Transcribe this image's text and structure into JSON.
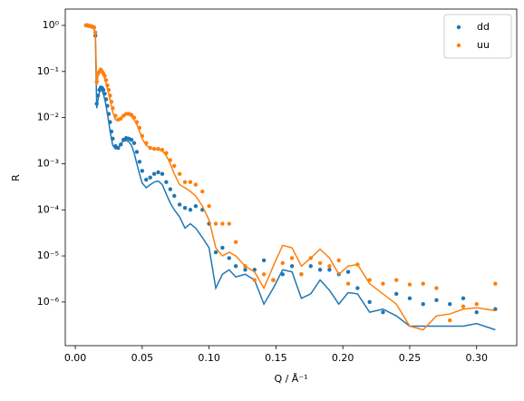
{
  "chart_data": {
    "type": "scatter",
    "log_y": true,
    "legend": "upper right",
    "xlabel": "Q / Å⁻¹",
    "ylabel": "R",
    "xlim": [
      -0.0075,
      0.33
    ],
    "ylim": [
      1.13e-07,
      2.26
    ],
    "xticks": [
      {
        "value": 0,
        "label": "0.00"
      },
      0.05,
      {
        "value": 0.1,
        "label": "0.10"
      },
      0.15,
      {
        "value": 0.2,
        "label": "0.20"
      },
      0.25,
      {
        "value": 0.3,
        "label": "0.30"
      }
    ],
    "yticks": [
      {
        "value": 1e-06,
        "label": "10⁻⁶"
      },
      {
        "value": 1e-05,
        "label": "10⁻⁵"
      },
      {
        "value": 0.0001,
        "label": "10⁻⁴"
      },
      {
        "value": 0.001,
        "label": "10⁻³"
      },
      {
        "value": 0.01,
        "label": "10⁻²"
      },
      {
        "value": 0.1,
        "label": "10⁻¹"
      },
      {
        "value": 1,
        "label": "10⁰"
      }
    ],
    "x": [
      0.008,
      0.009,
      0.01,
      0.011,
      0.012,
      0.013,
      0.014,
      0.015,
      0.016,
      0.017,
      0.018,
      0.019,
      0.02,
      0.021,
      0.022,
      0.023,
      0.024,
      0.025,
      0.026,
      0.027,
      0.028,
      0.03,
      0.032,
      0.034,
      0.036,
      0.038,
      0.04,
      0.042,
      0.044,
      0.046,
      0.048,
      0.05,
      0.053,
      0.056,
      0.059,
      0.062,
      0.065,
      0.068,
      0.071,
      0.074,
      0.078,
      0.082,
      0.086,
      0.09,
      0.095,
      0.1,
      0.105,
      0.11,
      0.115,
      0.12,
      0.127,
      0.134,
      0.141,
      0.148,
      0.155,
      0.162,
      0.169,
      0.176,
      0.183,
      0.19,
      0.197,
      0.204,
      0.211,
      0.22,
      0.23,
      0.24,
      0.25,
      0.26,
      0.27,
      0.28,
      0.29,
      0.3,
      0.314
    ],
    "series": [
      {
        "name": "dd",
        "color": "#1f77b4",
        "values": [
          1.0,
          1.0,
          0.98,
          0.97,
          0.95,
          0.93,
          0.9,
          0.6,
          0.02,
          0.03,
          0.04,
          0.045,
          0.044,
          0.04,
          0.033,
          0.025,
          0.018,
          0.012,
          0.008,
          0.005,
          0.0035,
          0.0024,
          0.0022,
          0.0026,
          0.0033,
          0.0036,
          0.0035,
          0.0033,
          0.0028,
          0.0018,
          0.0011,
          0.0007,
          0.00045,
          0.0005,
          0.0006,
          0.00065,
          0.0006,
          0.0004,
          0.00028,
          0.0002,
          0.00013,
          0.00011,
          0.0001,
          0.00012,
          0.0001,
          5e-05,
          1.2e-05,
          1.5e-05,
          9e-06,
          6e-06,
          5e-06,
          5e-06,
          8e-06,
          3e-06,
          4e-06,
          6e-06,
          4e-06,
          6e-06,
          5e-06,
          5e-06,
          4e-06,
          4.5e-06,
          2e-06,
          1e-06,
          6e-07,
          1.5e-06,
          1.2e-06,
          9e-07,
          1.1e-06,
          9e-07,
          1.2e-06,
          6e-07,
          7e-07
        ],
        "fit": [
          1.0,
          1.0,
          1.0,
          0.98,
          0.96,
          0.94,
          0.9,
          0.6,
          0.016,
          0.025,
          0.035,
          0.04,
          0.038,
          0.032,
          0.025,
          0.018,
          0.012,
          0.008,
          0.005,
          0.0035,
          0.0025,
          0.0021,
          0.0022,
          0.0027,
          0.0031,
          0.0032,
          0.003,
          0.0025,
          0.0017,
          0.001,
          0.0006,
          0.00038,
          0.0003,
          0.00035,
          0.0004,
          0.00042,
          0.00035,
          0.00022,
          0.00014,
          0.0001,
          7e-05,
          4e-05,
          5e-05,
          4e-05,
          2.5e-05,
          1.5e-05,
          2e-06,
          4e-06,
          5e-06,
          3.5e-06,
          4e-06,
          3e-06,
          9e-07,
          2e-06,
          5e-06,
          4.5e-06,
          1.2e-06,
          1.5e-06,
          3e-06,
          1.8e-06,
          9e-07,
          1.6e-06,
          1.5e-06,
          6e-07,
          7e-07,
          5e-07,
          3e-07,
          3e-07,
          3e-07,
          3e-07,
          3e-07,
          3.4e-07,
          2.5e-07
        ]
      },
      {
        "name": "uu",
        "color": "#ff7f0e",
        "values": [
          1.0,
          1.0,
          0.98,
          0.97,
          0.95,
          0.93,
          0.9,
          0.7,
          0.06,
          0.09,
          0.1,
          0.11,
          0.1,
          0.09,
          0.08,
          0.065,
          0.05,
          0.04,
          0.03,
          0.022,
          0.016,
          0.011,
          0.009,
          0.0095,
          0.011,
          0.012,
          0.012,
          0.0115,
          0.01,
          0.008,
          0.006,
          0.004,
          0.0028,
          0.0022,
          0.0021,
          0.0021,
          0.002,
          0.0017,
          0.0012,
          0.0009,
          0.0006,
          0.0004,
          0.0004,
          0.00035,
          0.00025,
          0.00012,
          5e-05,
          5e-05,
          5e-05,
          2e-05,
          6e-06,
          3e-06,
          4e-06,
          3e-06,
          7e-06,
          9e-06,
          4e-06,
          9e-06,
          7e-06,
          6e-06,
          8e-06,
          2.5e-06,
          6.5e-06,
          3e-06,
          2.5e-06,
          3e-06,
          2.4e-06,
          2.5e-06,
          2e-06,
          4e-07,
          8e-07,
          9e-07,
          2.5e-06
        ],
        "fit": [
          1.0,
          1.0,
          1.0,
          0.98,
          0.96,
          0.94,
          0.9,
          0.7,
          0.05,
          0.08,
          0.095,
          0.1,
          0.095,
          0.085,
          0.07,
          0.055,
          0.042,
          0.032,
          0.024,
          0.018,
          0.013,
          0.009,
          0.0085,
          0.0095,
          0.011,
          0.012,
          0.0115,
          0.0105,
          0.009,
          0.007,
          0.005,
          0.0035,
          0.0025,
          0.0022,
          0.0021,
          0.002,
          0.0019,
          0.0015,
          0.001,
          0.0006,
          0.00035,
          0.0003,
          0.00025,
          0.0002,
          0.00012,
          6e-05,
          1.5e-05,
          1e-05,
          1.2e-05,
          1e-05,
          6e-06,
          4.5e-06,
          2e-06,
          6e-06,
          1.7e-05,
          1.5e-05,
          6e-06,
          9e-06,
          1.4e-05,
          9e-06,
          4e-06,
          6e-06,
          6.5e-06,
          2.5e-06,
          1.5e-06,
          9e-07,
          3e-07,
          2.5e-07,
          5e-07,
          5.5e-07,
          7e-07,
          7.5e-07,
          6.5e-07
        ]
      }
    ]
  }
}
